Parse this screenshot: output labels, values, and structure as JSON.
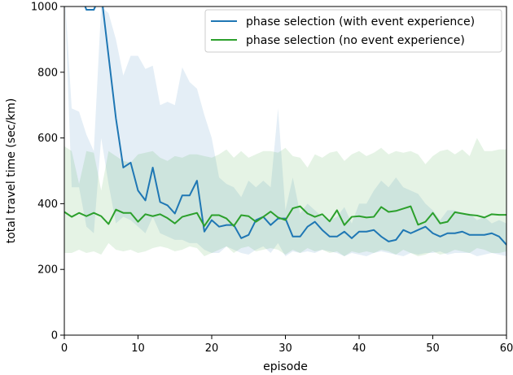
{
  "chart_data": {
    "type": "line",
    "xlabel": "episode",
    "ylabel": "total travel time (sec/km)",
    "xlim": [
      0,
      60
    ],
    "ylim": [
      0,
      1000
    ],
    "x_ticks": [
      0,
      10,
      20,
      30,
      40,
      50,
      60
    ],
    "y_ticks": [
      0,
      200,
      400,
      600,
      800,
      1000
    ],
    "grid": false,
    "legend_position": "top-right",
    "series": [
      {
        "name": "phase selection (with event experience)",
        "color": "#1f77b4",
        "x": [
          0,
          1,
          2,
          3,
          4,
          5,
          6,
          7,
          8,
          9,
          10,
          11,
          12,
          13,
          14,
          15,
          16,
          17,
          18,
          19,
          20,
          21,
          22,
          23,
          24,
          25,
          26,
          27,
          28,
          29,
          30,
          31,
          32,
          33,
          34,
          35,
          36,
          37,
          38,
          39,
          40,
          41,
          42,
          43,
          44,
          45,
          46,
          47,
          48,
          49,
          50,
          51,
          52,
          53,
          54,
          55,
          56,
          57,
          58,
          59,
          60
        ],
        "values": [
          1060,
          1070,
          1050,
          990,
          990,
          1040,
          850,
          660,
          510,
          525,
          440,
          410,
          510,
          405,
          395,
          370,
          425,
          425,
          470,
          315,
          350,
          330,
          335,
          335,
          295,
          305,
          350,
          360,
          335,
          355,
          355,
          300,
          300,
          330,
          345,
          320,
          300,
          300,
          315,
          295,
          315,
          315,
          320,
          300,
          285,
          290,
          320,
          310,
          320,
          330,
          310,
          300,
          310,
          310,
          315,
          305,
          305,
          305,
          310,
          300,
          275
        ],
        "band_upper": [
          1060,
          690,
          680,
          610,
          560,
          1000,
          980,
          900,
          790,
          850,
          850,
          810,
          820,
          700,
          710,
          700,
          815,
          770,
          750,
          670,
          600,
          480,
          460,
          450,
          420,
          470,
          450,
          470,
          450,
          690,
          380,
          480,
          370,
          400,
          380,
          360,
          350,
          360,
          390,
          340,
          400,
          400,
          440,
          470,
          450,
          480,
          450,
          440,
          430,
          400,
          380,
          350,
          380,
          380,
          370,
          370,
          350,
          360,
          340,
          350,
          340
        ],
        "band_lower": [
          1060,
          450,
          450,
          330,
          310,
          600,
          460,
          340,
          360,
          350,
          330,
          310,
          360,
          310,
          300,
          290,
          290,
          280,
          280,
          260,
          250,
          250,
          270,
          260,
          250,
          245,
          260,
          270,
          250,
          280,
          240,
          255,
          250,
          255,
          250,
          260,
          255,
          250,
          240,
          250,
          245,
          240,
          250,
          255,
          250,
          245,
          240,
          250,
          245,
          250,
          250,
          255,
          245,
          250,
          250,
          250,
          240,
          245,
          250,
          245,
          240
        ],
        "line_width": 2
      },
      {
        "name": "phase selection (no event experience)",
        "color": "#2ca02c",
        "x": [
          0,
          1,
          2,
          3,
          4,
          5,
          6,
          7,
          8,
          9,
          10,
          11,
          12,
          13,
          14,
          15,
          16,
          17,
          18,
          19,
          20,
          21,
          22,
          23,
          24,
          25,
          26,
          27,
          28,
          29,
          30,
          31,
          32,
          33,
          34,
          35,
          36,
          37,
          38,
          39,
          40,
          41,
          42,
          43,
          44,
          45,
          46,
          47,
          48,
          49,
          50,
          51,
          52,
          53,
          54,
          55,
          56,
          57,
          58,
          59,
          60
        ],
        "values": [
          375,
          360,
          372,
          362,
          372,
          362,
          338,
          382,
          372,
          372,
          345,
          368,
          362,
          368,
          356,
          340,
          360,
          366,
          372,
          332,
          365,
          365,
          355,
          332,
          365,
          362,
          345,
          360,
          376,
          358,
          350,
          386,
          392,
          370,
          360,
          368,
          346,
          380,
          335,
          360,
          362,
          358,
          360,
          390,
          375,
          378,
          385,
          392,
          336,
          345,
          372,
          340,
          345,
          374,
          370,
          366,
          364,
          358,
          368,
          366,
          366
        ],
        "band_upper": [
          575,
          560,
          460,
          560,
          555,
          440,
          560,
          545,
          530,
          525,
          550,
          555,
          560,
          540,
          530,
          545,
          540,
          550,
          550,
          545,
          540,
          550,
          565,
          540,
          560,
          540,
          550,
          560,
          560,
          555,
          570,
          545,
          540,
          510,
          550,
          540,
          555,
          560,
          530,
          550,
          560,
          545,
          555,
          570,
          550,
          560,
          555,
          560,
          550,
          520,
          545,
          560,
          565,
          550,
          565,
          545,
          600,
          560,
          560,
          565,
          565
        ],
        "band_lower": [
          250,
          250,
          260,
          250,
          255,
          245,
          280,
          260,
          255,
          260,
          250,
          255,
          265,
          270,
          265,
          255,
          260,
          270,
          265,
          240,
          250,
          260,
          270,
          250,
          265,
          270,
          255,
          260,
          265,
          260,
          245,
          260,
          250,
          265,
          255,
          260,
          250,
          255,
          240,
          255,
          250,
          255,
          250,
          260,
          255,
          245,
          260,
          250,
          240,
          245,
          255,
          245,
          250,
          260,
          255,
          250,
          265,
          260,
          250,
          250,
          255
        ],
        "line_width": 2
      }
    ]
  }
}
